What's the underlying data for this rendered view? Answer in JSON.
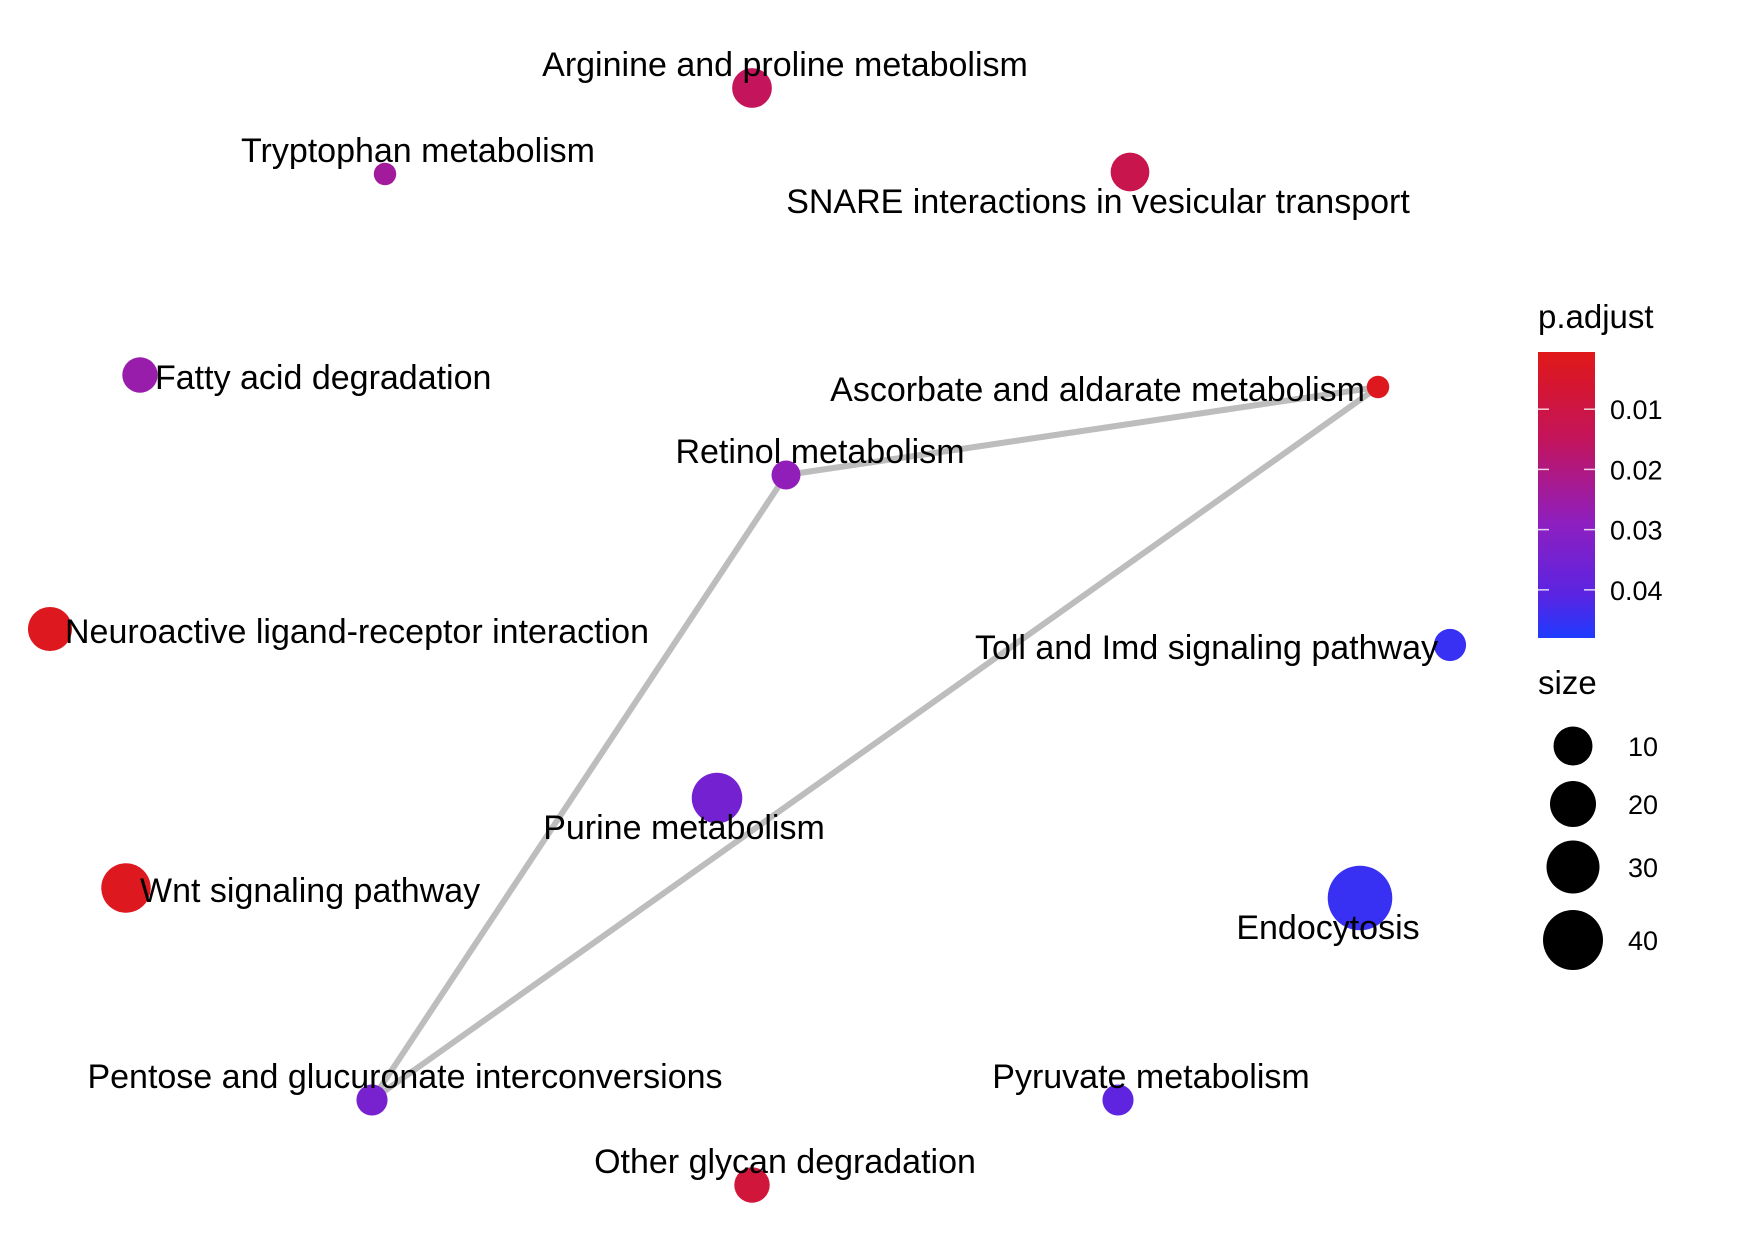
{
  "network": {
    "nodes": [
      {
        "id": "arginine",
        "label": "Arginine and proline metabolism",
        "p_adjust": 0.015,
        "size": 22
      },
      {
        "id": "tryptophan",
        "label": "Tryptophan metabolism",
        "p_adjust": 0.024,
        "size": 6
      },
      {
        "id": "snare",
        "label": "SNARE interactions in vesicular transport",
        "p_adjust": 0.012,
        "size": 21
      },
      {
        "id": "fatty",
        "label": "Fatty acid degradation",
        "p_adjust": 0.026,
        "size": 18
      },
      {
        "id": "ascorbate",
        "label": "Ascorbate and aldarate metabolism",
        "p_adjust": 0.002,
        "size": 6
      },
      {
        "id": "retinol",
        "label": "Retinol metabolism",
        "p_adjust": 0.028,
        "size": 12
      },
      {
        "id": "neuroactive",
        "label": "Neuroactive ligand-receptor interaction",
        "p_adjust": 0.002,
        "size": 26
      },
      {
        "id": "toll",
        "label": "Toll and Imd signaling pathway",
        "p_adjust": 0.045,
        "size": 15
      },
      {
        "id": "purine",
        "label": "Purine metabolism",
        "p_adjust": 0.035,
        "size": 32
      },
      {
        "id": "wnt",
        "label": "Wnt signaling pathway",
        "p_adjust": 0.002,
        "size": 31
      },
      {
        "id": "endocytosis",
        "label": "Endocytosis",
        "p_adjust": 0.045,
        "size": 45
      },
      {
        "id": "pentose",
        "label": "Pentose and glucuronate interconversions",
        "p_adjust": 0.034,
        "size": 14
      },
      {
        "id": "pyruvate",
        "label": "Pyruvate metabolism",
        "p_adjust": 0.04,
        "size": 14
      },
      {
        "id": "other_glycan",
        "label": "Other glycan degradation",
        "p_adjust": 0.008,
        "size": 18
      }
    ],
    "edges": [
      {
        "source": "retinol",
        "target": "ascorbate"
      },
      {
        "source": "retinol",
        "target": "pentose"
      },
      {
        "source": "ascorbate",
        "target": "pentose"
      }
    ]
  },
  "legend": {
    "color": {
      "title": "p.adjust",
      "ticks": [
        0.01,
        0.02,
        0.03,
        0.04
      ],
      "tick_labels": [
        "0.01",
        "0.02",
        "0.03",
        "0.04"
      ],
      "low_color": "#E31A1C",
      "high_color": "#1F3BFF"
    },
    "size": {
      "title": "size",
      "values": [
        10,
        20,
        30,
        40
      ],
      "labels": [
        "10",
        "20",
        "30",
        "40"
      ]
    }
  },
  "colors": {
    "edge": "#BDBDBD",
    "text": "#000000",
    "background": "#FFFFFF"
  }
}
